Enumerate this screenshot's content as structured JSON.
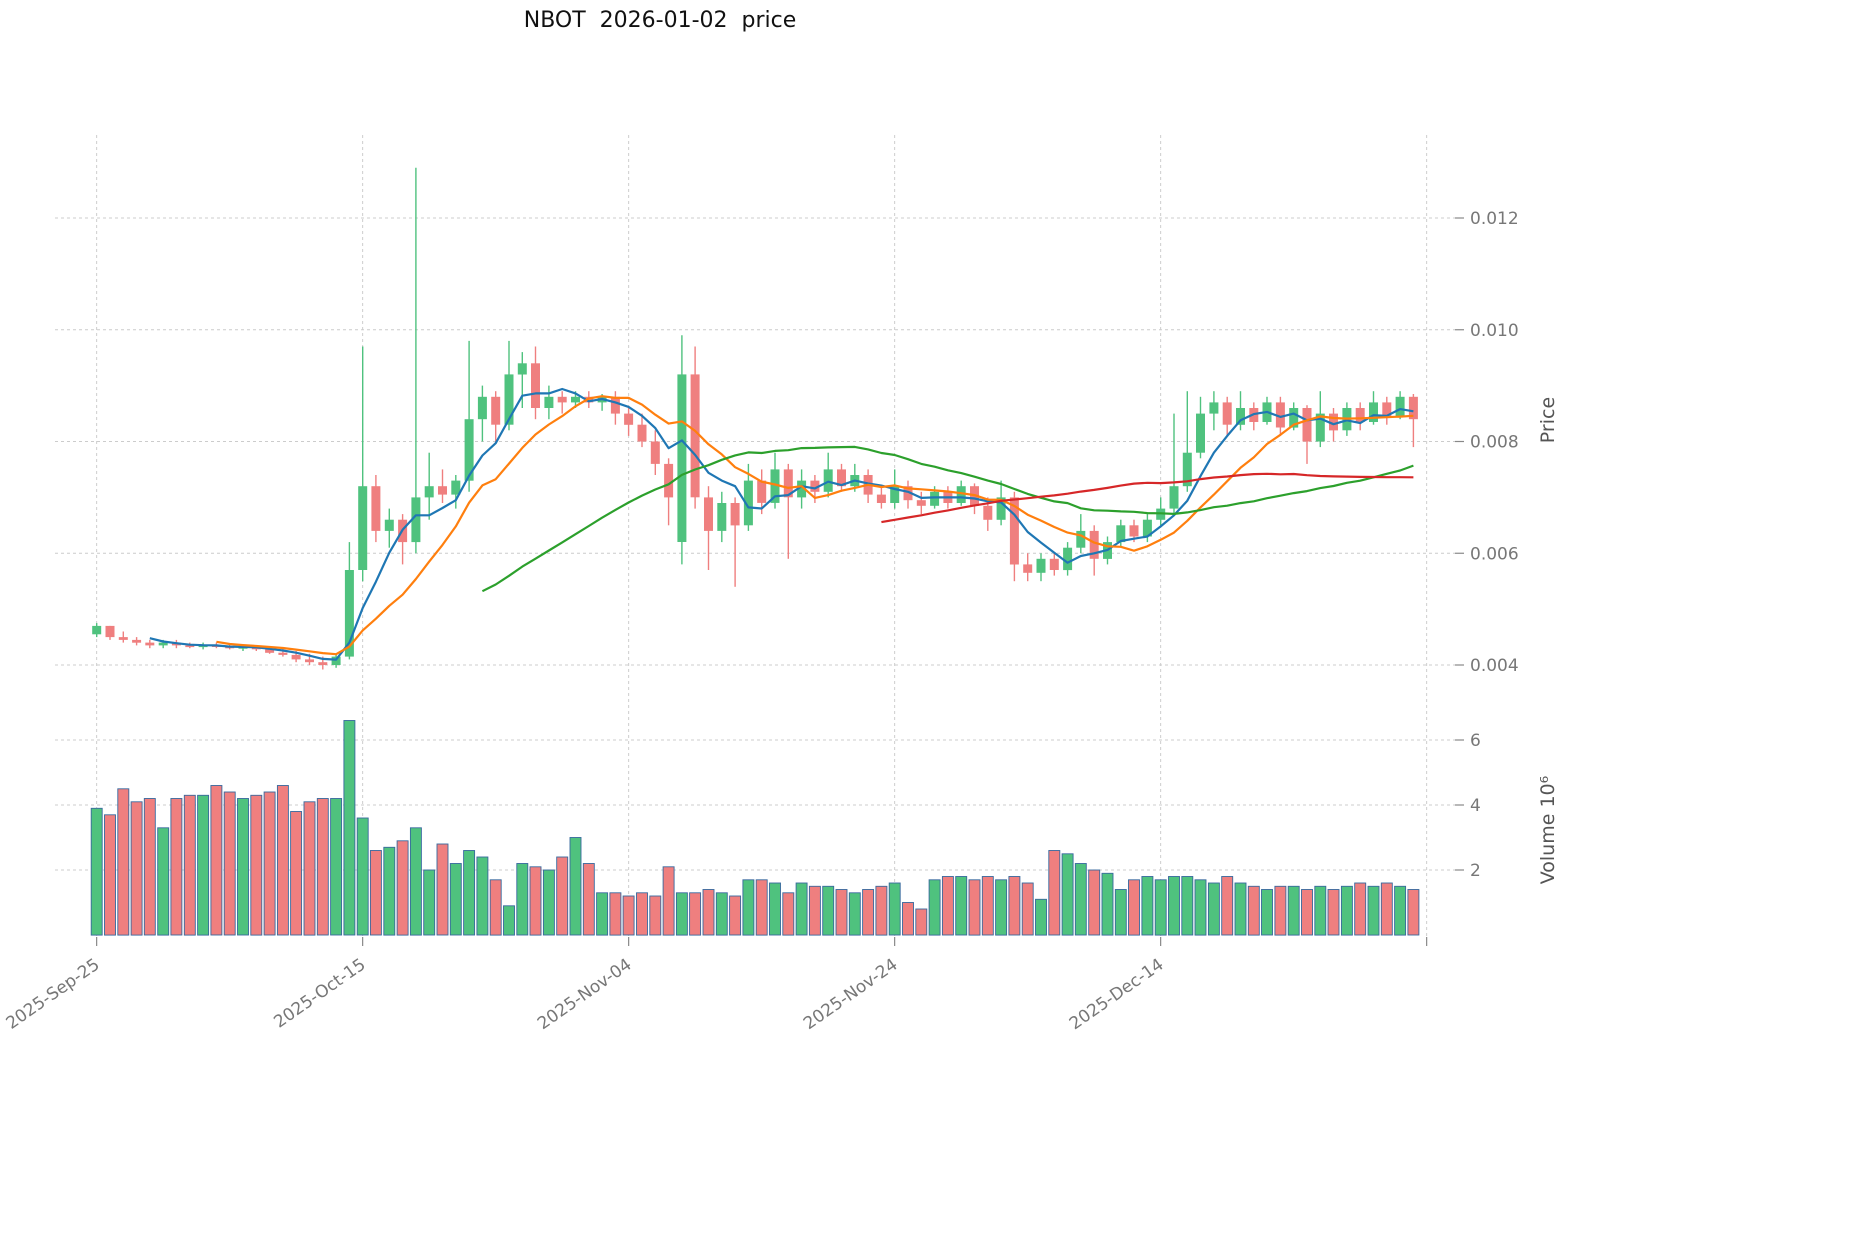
{
  "chart_data": {
    "type": "candlestick",
    "title": "NBOT  2026-01-02  price",
    "symbol": "NBOT",
    "as_of_date": "2026-01-02",
    "grid": true,
    "legend_position": "none",
    "price_axis": {
      "label": "Price",
      "ticks": [
        0.004,
        0.006,
        0.008,
        0.01,
        0.012
      ],
      "range": [
        0.0035,
        0.0135
      ]
    },
    "volume_axis": {
      "label": "Volume 10⁶",
      "ticks": [
        2,
        4,
        6
      ],
      "range": [
        0,
        7
      ],
      "unit": 1000000
    },
    "x_ticks": [
      {
        "index": 0,
        "label": "2025-Sep-25"
      },
      {
        "index": 20,
        "label": "2025-Oct-15"
      },
      {
        "index": 40,
        "label": "2025-Nov-04"
      },
      {
        "index": 60,
        "label": "2025-Nov-24"
      },
      {
        "index": 80,
        "label": "2025-Dec-14"
      },
      {
        "index": 100,
        "label": ""
      }
    ],
    "moving_averages": [
      {
        "name": "MA5",
        "period": 5,
        "color": "#1f77b4"
      },
      {
        "name": "MA10",
        "period": 10,
        "color": "#ff7f0e"
      },
      {
        "name": "MA30",
        "period": 30,
        "color": "#2ca02c"
      },
      {
        "name": "MA60",
        "period": 60,
        "color": "#d62728"
      }
    ],
    "colors": {
      "up": "#4fc27e",
      "down": "#ef7f7f",
      "volume_edge": "#38699e",
      "grid": "#cccccc",
      "axis_text": "#777777"
    },
    "dates": [
      "2025-09-25",
      "2025-09-26",
      "2025-09-27",
      "2025-09-28",
      "2025-09-29",
      "2025-09-30",
      "2025-10-01",
      "2025-10-02",
      "2025-10-03",
      "2025-10-04",
      "2025-10-05",
      "2025-10-06",
      "2025-10-07",
      "2025-10-08",
      "2025-10-09",
      "2025-10-10",
      "2025-10-11",
      "2025-10-12",
      "2025-10-13",
      "2025-10-14",
      "2025-10-15",
      "2025-10-16",
      "2025-10-17",
      "2025-10-18",
      "2025-10-19",
      "2025-10-20",
      "2025-10-21",
      "2025-10-22",
      "2025-10-23",
      "2025-10-24",
      "2025-10-25",
      "2025-10-26",
      "2025-10-27",
      "2025-10-28",
      "2025-10-29",
      "2025-10-30",
      "2025-10-31",
      "2025-11-01",
      "2025-11-02",
      "2025-11-03",
      "2025-11-04",
      "2025-11-05",
      "2025-11-06",
      "2025-11-07",
      "2025-11-08",
      "2025-11-09",
      "2025-11-10",
      "2025-11-11",
      "2025-11-12",
      "2025-11-13",
      "2025-11-14",
      "2025-11-15",
      "2025-11-16",
      "2025-11-17",
      "2025-11-18",
      "2025-11-19",
      "2025-11-20",
      "2025-11-21",
      "2025-11-22",
      "2025-11-23",
      "2025-11-24",
      "2025-11-25",
      "2025-11-26",
      "2025-11-27",
      "2025-11-28",
      "2025-11-29",
      "2025-11-30",
      "2025-12-01",
      "2025-12-02",
      "2025-12-03",
      "2025-12-04",
      "2025-12-05",
      "2025-12-06",
      "2025-12-07",
      "2025-12-08",
      "2025-12-09",
      "2025-12-10",
      "2025-12-11",
      "2025-12-12",
      "2025-12-13",
      "2025-12-14",
      "2025-12-15",
      "2025-12-16",
      "2025-12-17",
      "2025-12-18",
      "2025-12-19",
      "2025-12-20",
      "2025-12-21",
      "2025-12-22",
      "2025-12-23",
      "2025-12-24",
      "2025-12-25",
      "2025-12-26",
      "2025-12-27",
      "2025-12-28",
      "2025-12-29",
      "2025-12-30",
      "2025-12-31",
      "2026-01-01",
      "2026-01-02"
    ],
    "ohlc": [
      [
        0.00455,
        0.00475,
        0.0045,
        0.0047
      ],
      [
        0.0047,
        0.0047,
        0.00445,
        0.0045
      ],
      [
        0.0045,
        0.0046,
        0.0044,
        0.00445
      ],
      [
        0.00445,
        0.0045,
        0.00435,
        0.0044
      ],
      [
        0.0044,
        0.00445,
        0.0043,
        0.00435
      ],
      [
        0.00435,
        0.00445,
        0.0043,
        0.0044
      ],
      [
        0.0044,
        0.00445,
        0.0043,
        0.00435
      ],
      [
        0.00435,
        0.0044,
        0.0043,
        0.00432
      ],
      [
        0.00432,
        0.0044,
        0.00428,
        0.00435
      ],
      [
        0.00435,
        0.0044,
        0.0043,
        0.00433
      ],
      [
        0.00433,
        0.00438,
        0.00428,
        0.0043
      ],
      [
        0.0043,
        0.00436,
        0.00425,
        0.00432
      ],
      [
        0.00432,
        0.00435,
        0.00425,
        0.00428
      ],
      [
        0.00428,
        0.00432,
        0.0042,
        0.00422
      ],
      [
        0.00422,
        0.0043,
        0.00415,
        0.00418
      ],
      [
        0.00418,
        0.00425,
        0.00405,
        0.0041
      ],
      [
        0.0041,
        0.0042,
        0.004,
        0.00405
      ],
      [
        0.00405,
        0.00415,
        0.00392,
        0.004
      ],
      [
        0.004,
        0.0042,
        0.00395,
        0.00415
      ],
      [
        0.00415,
        0.0062,
        0.0041,
        0.0057
      ],
      [
        0.0057,
        0.0097,
        0.0055,
        0.0072
      ],
      [
        0.0072,
        0.0074,
        0.0062,
        0.0064
      ],
      [
        0.0064,
        0.0068,
        0.0061,
        0.0066
      ],
      [
        0.0066,
        0.0067,
        0.0058,
        0.0062
      ],
      [
        0.0062,
        0.0129,
        0.006,
        0.007
      ],
      [
        0.007,
        0.0078,
        0.0066,
        0.0072
      ],
      [
        0.0072,
        0.0075,
        0.0069,
        0.00705
      ],
      [
        0.00705,
        0.0074,
        0.0068,
        0.0073
      ],
      [
        0.0073,
        0.0098,
        0.0071,
        0.0084
      ],
      [
        0.0084,
        0.009,
        0.008,
        0.0088
      ],
      [
        0.0088,
        0.0089,
        0.008,
        0.0083
      ],
      [
        0.0083,
        0.0098,
        0.0082,
        0.0092
      ],
      [
        0.0092,
        0.0096,
        0.0086,
        0.0094
      ],
      [
        0.0094,
        0.0097,
        0.0084,
        0.0086
      ],
      [
        0.0086,
        0.009,
        0.0084,
        0.0088
      ],
      [
        0.0088,
        0.0089,
        0.0085,
        0.0087
      ],
      [
        0.0087,
        0.0089,
        0.0086,
        0.0088
      ],
      [
        0.0088,
        0.0089,
        0.0086,
        0.0087
      ],
      [
        0.0087,
        0.00885,
        0.00855,
        0.0088
      ],
      [
        0.0088,
        0.0089,
        0.0083,
        0.0085
      ],
      [
        0.0085,
        0.0086,
        0.0081,
        0.0083
      ],
      [
        0.0083,
        0.0085,
        0.0079,
        0.008
      ],
      [
        0.008,
        0.0082,
        0.0074,
        0.0076
      ],
      [
        0.0076,
        0.0077,
        0.0065,
        0.007
      ],
      [
        0.0062,
        0.0099,
        0.0058,
        0.0092
      ],
      [
        0.0092,
        0.0097,
        0.0068,
        0.007
      ],
      [
        0.007,
        0.0072,
        0.0057,
        0.0064
      ],
      [
        0.0064,
        0.0071,
        0.0062,
        0.0069
      ],
      [
        0.0069,
        0.007,
        0.0054,
        0.0065
      ],
      [
        0.0065,
        0.0076,
        0.0064,
        0.0073
      ],
      [
        0.0073,
        0.0075,
        0.0067,
        0.0069
      ],
      [
        0.0069,
        0.0078,
        0.0068,
        0.0075
      ],
      [
        0.0075,
        0.0076,
        0.0059,
        0.007
      ],
      [
        0.007,
        0.0075,
        0.0068,
        0.0073
      ],
      [
        0.0073,
        0.0074,
        0.0069,
        0.0071
      ],
      [
        0.0071,
        0.0078,
        0.007,
        0.0075
      ],
      [
        0.0075,
        0.0076,
        0.0071,
        0.0072
      ],
      [
        0.0072,
        0.0076,
        0.0071,
        0.0074
      ],
      [
        0.0074,
        0.0075,
        0.0069,
        0.00705
      ],
      [
        0.00705,
        0.0072,
        0.0068,
        0.0069
      ],
      [
        0.0069,
        0.0075,
        0.0068,
        0.0072
      ],
      [
        0.0072,
        0.0073,
        0.0068,
        0.00695
      ],
      [
        0.00695,
        0.0071,
        0.0067,
        0.00685
      ],
      [
        0.00685,
        0.0072,
        0.0068,
        0.0071
      ],
      [
        0.0071,
        0.0072,
        0.0068,
        0.0069
      ],
      [
        0.0069,
        0.0073,
        0.00685,
        0.0072
      ],
      [
        0.0072,
        0.00725,
        0.0067,
        0.00685
      ],
      [
        0.00685,
        0.007,
        0.0064,
        0.0066
      ],
      [
        0.0066,
        0.0073,
        0.0065,
        0.007
      ],
      [
        0.007,
        0.0071,
        0.0055,
        0.0058
      ],
      [
        0.0058,
        0.006,
        0.0055,
        0.00565
      ],
      [
        0.00565,
        0.006,
        0.0055,
        0.0059
      ],
      [
        0.0059,
        0.006,
        0.0056,
        0.0057
      ],
      [
        0.0057,
        0.0062,
        0.0056,
        0.0061
      ],
      [
        0.0061,
        0.0067,
        0.006,
        0.0064
      ],
      [
        0.0064,
        0.0065,
        0.0056,
        0.0059
      ],
      [
        0.0059,
        0.0063,
        0.0058,
        0.0062
      ],
      [
        0.0062,
        0.0066,
        0.0061,
        0.0065
      ],
      [
        0.0065,
        0.0066,
        0.0062,
        0.0063
      ],
      [
        0.0063,
        0.0067,
        0.0062,
        0.0066
      ],
      [
        0.0066,
        0.007,
        0.0065,
        0.0068
      ],
      [
        0.0068,
        0.0085,
        0.0067,
        0.0072
      ],
      [
        0.0072,
        0.0089,
        0.0071,
        0.0078
      ],
      [
        0.0078,
        0.0088,
        0.0077,
        0.0085
      ],
      [
        0.0085,
        0.0089,
        0.0082,
        0.0087
      ],
      [
        0.0087,
        0.0088,
        0.0081,
        0.0083
      ],
      [
        0.0083,
        0.0089,
        0.0082,
        0.0086
      ],
      [
        0.0086,
        0.0087,
        0.0082,
        0.00835
      ],
      [
        0.00835,
        0.0088,
        0.0083,
        0.0087
      ],
      [
        0.0087,
        0.0088,
        0.0081,
        0.00825
      ],
      [
        0.00825,
        0.0087,
        0.0082,
        0.0086
      ],
      [
        0.0086,
        0.00865,
        0.0076,
        0.008
      ],
      [
        0.008,
        0.0089,
        0.0079,
        0.0085
      ],
      [
        0.0085,
        0.0086,
        0.008,
        0.0082
      ],
      [
        0.0082,
        0.0087,
        0.0081,
        0.0086
      ],
      [
        0.0086,
        0.0087,
        0.0082,
        0.00835
      ],
      [
        0.00835,
        0.0089,
        0.0083,
        0.0087
      ],
      [
        0.0087,
        0.0088,
        0.0083,
        0.00845
      ],
      [
        0.00845,
        0.0089,
        0.0084,
        0.0088
      ],
      [
        0.0088,
        0.00885,
        0.0079,
        0.0084
      ]
    ],
    "volume_millions": [
      3.9,
      3.7,
      4.5,
      4.1,
      4.2,
      3.3,
      4.2,
      4.3,
      4.3,
      4.6,
      4.4,
      4.2,
      4.3,
      4.4,
      4.6,
      3.8,
      4.1,
      4.2,
      4.2,
      6.6,
      3.6,
      2.6,
      2.7,
      2.9,
      3.3,
      2.0,
      2.8,
      2.2,
      2.6,
      2.4,
      1.7,
      0.9,
      2.2,
      2.1,
      2.0,
      2.4,
      3.0,
      2.2,
      1.3,
      1.3,
      1.2,
      1.3,
      1.2,
      2.1,
      1.3,
      1.3,
      1.4,
      1.3,
      1.2,
      1.7,
      1.7,
      1.6,
      1.3,
      1.6,
      1.5,
      1.5,
      1.4,
      1.3,
      1.4,
      1.5,
      1.6,
      1.0,
      0.8,
      1.7,
      1.8,
      1.8,
      1.7,
      1.8,
      1.7,
      1.8,
      1.6,
      1.1,
      2.6,
      2.5,
      2.2,
      2.0,
      1.9,
      1.4,
      1.7,
      1.8,
      1.7,
      1.8,
      1.8,
      1.7,
      1.6,
      1.8,
      1.6,
      1.5,
      1.4,
      1.5,
      1.5,
      1.4,
      1.5,
      1.4,
      1.5,
      1.6,
      1.5,
      1.6,
      1.5,
      1.4
    ]
  }
}
